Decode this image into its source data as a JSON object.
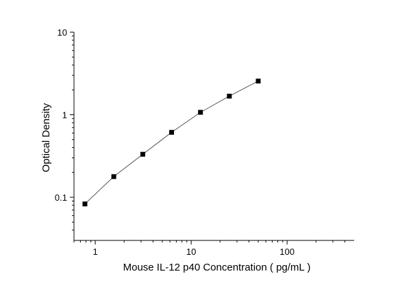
{
  "chart_data": {
    "type": "scatter",
    "title": "",
    "xlabel": "Mouse IL-12 p40  Concentration ( pg/mL )",
    "ylabel": "Optical Density",
    "x_scale": "log",
    "y_scale": "log",
    "xlim": [
      0.6,
      500
    ],
    "ylim": [
      0.03,
      10
    ],
    "x_ticks": [
      {
        "value": 1,
        "label": "1"
      },
      {
        "value": 10,
        "label": "10"
      },
      {
        "value": 100,
        "label": "100"
      }
    ],
    "y_ticks": [
      {
        "value": 0.1,
        "label": "0.1"
      },
      {
        "value": 1,
        "label": "1"
      },
      {
        "value": 10,
        "label": "10"
      }
    ],
    "grid": false,
    "legend": "none",
    "marker": "square",
    "color": "#000000",
    "line_color": "#555555",
    "series": [
      {
        "x": [
          0.78,
          1.56,
          3.13,
          6.25,
          12.5,
          25,
          50
        ],
        "y": [
          0.083,
          0.178,
          0.332,
          0.612,
          1.07,
          1.68,
          2.56
        ]
      }
    ]
  }
}
